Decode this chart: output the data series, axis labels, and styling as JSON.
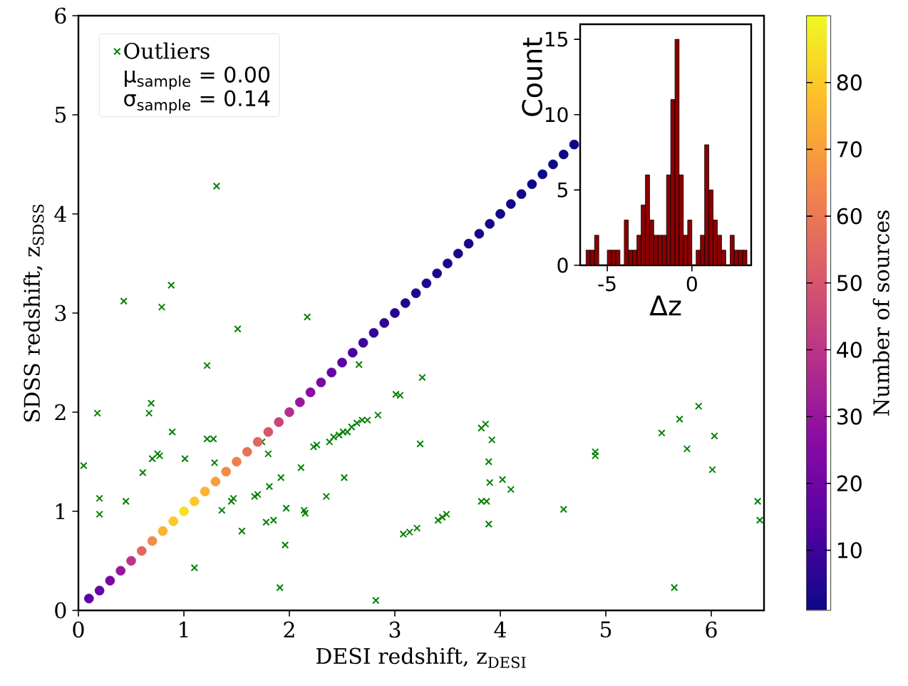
{
  "chart_data": [
    {
      "type": "scatter",
      "xlabel": "DESI redshift, z$_{DESI}$",
      "ylabel": "SDSS redshift, z$_{SDSS}$",
      "clabel": "Number of sources",
      "xlim": [
        0,
        6.5
      ],
      "ylim": [
        0,
        6
      ],
      "xticks": [
        0,
        1,
        2,
        3,
        4,
        5,
        6
      ],
      "yticks": [
        0,
        1,
        2,
        3,
        4,
        5,
        6
      ],
      "clim": [
        1,
        90
      ],
      "cticks": [
        10,
        20,
        30,
        40,
        50,
        60,
        70,
        80
      ],
      "legend": "top left",
      "annotations": [
        "μ$_{sample}$ = 0.00",
        "σ$_{sample}$ = 0.14"
      ],
      "series": [
        {
          "name": "Outliers",
          "color": "#008000",
          "marker": "cross",
          "x": [
            0.05,
            0.18,
            0.2,
            0.2,
            0.45,
            0.43,
            0.61,
            0.67,
            0.69,
            0.79,
            0.88,
            0.7,
            0.75,
            0.77,
            0.89,
            1.01,
            1.1,
            1.22,
            1.31,
            1.22,
            1.28,
            1.29,
            1.36,
            1.45,
            1.47,
            1.51,
            1.55,
            1.67,
            1.7,
            1.78,
            1.8,
            1.81,
            1.85,
            1.74,
            1.92,
            1.91,
            1.96,
            1.97,
            2.11,
            2.14,
            2.15,
            2.17,
            2.23,
            2.26,
            2.35,
            2.38,
            2.42,
            2.47,
            2.51,
            2.55,
            2.59,
            2.64,
            2.69,
            2.74,
            2.84,
            2.52,
            2.66,
            2.82,
            3.01,
            3.05,
            3.26,
            3.24,
            3.08,
            3.14,
            3.21,
            3.41,
            3.45,
            3.49,
            3.82,
            3.86,
            3.92,
            3.89,
            3.9,
            4.02,
            4.1,
            3.82,
            3.87,
            3.89,
            4.6,
            4.9,
            4.9,
            5.53,
            5.7,
            5.88,
            5.77,
            6.03,
            6.01,
            5.65,
            6.44,
            6.46
          ],
          "values": [
            1.46,
            1.99,
            1.13,
            0.97,
            1.1,
            3.12,
            1.39,
            1.99,
            2.09,
            3.06,
            3.28,
            1.53,
            1.58,
            1.56,
            1.8,
            1.53,
            0.43,
            2.47,
            4.28,
            1.73,
            1.73,
            1.49,
            1.01,
            1.1,
            1.13,
            2.84,
            0.8,
            1.15,
            1.17,
            0.89,
            1.58,
            1.25,
            0.91,
            1.7,
            1.34,
            0.23,
            0.66,
            1.03,
            1.44,
            1.01,
            0.98,
            2.96,
            1.65,
            1.67,
            1.15,
            1.7,
            1.75,
            1.77,
            1.8,
            1.8,
            1.85,
            1.89,
            1.92,
            1.92,
            1.97,
            1.34,
            2.48,
            0.1,
            2.18,
            2.17,
            2.35,
            1.68,
            0.77,
            0.79,
            0.83,
            0.91,
            0.94,
            0.97,
            1.84,
            1.88,
            1.72,
            1.5,
            1.29,
            1.32,
            1.22,
            1.1,
            1.1,
            0.87,
            1.02,
            1.6,
            1.56,
            1.79,
            1.93,
            2.06,
            1.63,
            1.76,
            1.42,
            0.23,
            1.1,
            0.91
          ]
        },
        {
          "marker": "circle",
          "x": [
            0.1,
            0.2,
            0.3,
            0.4,
            0.5,
            0.6,
            0.7,
            0.8,
            0.9,
            1.0,
            1.1,
            1.2,
            1.3,
            1.4,
            1.5,
            1.6,
            1.7,
            1.8,
            1.9,
            2.0,
            2.1,
            2.2,
            2.3,
            2.4,
            2.5,
            2.6,
            2.7,
            2.8,
            2.9,
            3.0,
            3.1,
            3.2,
            3.3,
            3.4,
            3.5,
            3.6,
            3.7,
            3.8,
            3.9,
            4.0,
            4.1,
            4.2,
            4.3,
            4.4,
            4.5,
            4.6,
            4.7
          ],
          "values": [
            0.12,
            0.2,
            0.3,
            0.4,
            0.5,
            0.6,
            0.7,
            0.8,
            0.9,
            1.0,
            1.1,
            1.2,
            1.3,
            1.4,
            1.5,
            1.6,
            1.7,
            1.8,
            1.9,
            2.0,
            2.1,
            2.2,
            2.3,
            2.4,
            2.5,
            2.6,
            2.7,
            2.8,
            2.9,
            3.0,
            3.1,
            3.2,
            3.3,
            3.4,
            3.5,
            3.6,
            3.7,
            3.8,
            3.9,
            4.0,
            4.1,
            4.2,
            4.3,
            4.4,
            4.5,
            4.6,
            4.7
          ],
          "cvalues": [
            15,
            18,
            22,
            30,
            40,
            55,
            65,
            75,
            80,
            85,
            80,
            75,
            70,
            65,
            62,
            58,
            55,
            50,
            45,
            38,
            30,
            26,
            22,
            18,
            15,
            12,
            10,
            8,
            7,
            6,
            5,
            5,
            4,
            4,
            3,
            3,
            3,
            2,
            2,
            2,
            2,
            2,
            1,
            1,
            1,
            1,
            1
          ],
          "colors": [
            "#5a03a3",
            "#6705a4",
            "#7807a4",
            "#91109f",
            "#bb3488",
            "#e16760",
            "#f4884a",
            "#fcb32f",
            "#fbc928",
            "#f6e124",
            "#fbc928",
            "#fcb32f",
            "#f89e3e",
            "#f4884a",
            "#ef7f4f",
            "#e77159",
            "#e16760",
            "#d6566d",
            "#c8457a",
            "#b52e8b",
            "#91109f",
            "#890aa5",
            "#7807a4",
            "#6705a4",
            "#5a03a3",
            "#4a039f",
            "#40049b",
            "#340597",
            "#2e0696",
            "#290693",
            "#230791",
            "#230791",
            "#1f078f",
            "#1f078f",
            "#19078c",
            "#19078c",
            "#19078c",
            "#12088a",
            "#12088a",
            "#12088a",
            "#12088a",
            "#12088a",
            "#0d0887",
            "#0d0887",
            "#0d0887",
            "#0d0887",
            "#0d0887"
          ]
        }
      ]
    },
    {
      "type": "histogram",
      "xlabel": "Δz",
      "ylabel": "Count",
      "color": "#8b0000",
      "xlim": [
        -6.6,
        3.5
      ],
      "ylim": [
        0,
        16
      ],
      "xticks": [
        -5,
        0
      ],
      "yticks": [
        0,
        5,
        10,
        15
      ],
      "bins": [
        -6.25,
        -6.0,
        -5.75,
        -5.5,
        -5.25,
        -5.0,
        -4.75,
        -4.5,
        -4.25,
        -4.0,
        -3.75,
        -3.5,
        -3.25,
        -3.0,
        -2.75,
        -2.5,
        -2.25,
        -2.0,
        -1.75,
        -1.5,
        -1.25,
        -1.0,
        -0.75,
        -0.5,
        -0.25,
        0.0,
        0.25,
        0.5,
        0.75,
        1.0,
        1.25,
        1.5,
        1.75,
        2.0,
        2.25,
        2.5,
        2.75,
        3.0,
        3.25
      ],
      "values": [
        1,
        1,
        2,
        0,
        0,
        1,
        1,
        1,
        0,
        3,
        1,
        1,
        2,
        4,
        6,
        3,
        2,
        2,
        2,
        6,
        11,
        15,
        6,
        2,
        3,
        0,
        1,
        2,
        8,
        5,
        3,
        2,
        1,
        0,
        2,
        1,
        1,
        1
      ]
    }
  ]
}
